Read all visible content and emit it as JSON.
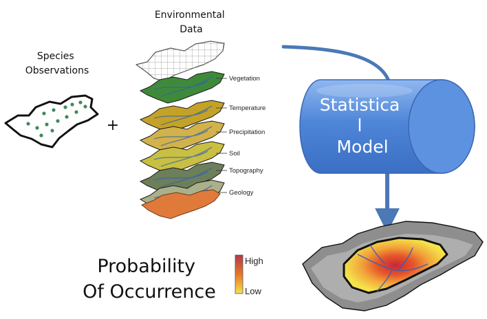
{
  "species_observations_label": [
    "Species",
    "Observations"
  ],
  "plus_sign": "+",
  "environmental_data_label": [
    "Environmental",
    "Data"
  ],
  "layers": [
    {
      "name": "Vegetation",
      "color": "#3f8a3a"
    },
    {
      "name": "Temperature",
      "color": "#c4a227"
    },
    {
      "name": "Precipitation",
      "color": "#d2b24a"
    },
    {
      "name": "Soil",
      "color": "#c9c043"
    },
    {
      "name": "Topography",
      "color": "#6d7f5a"
    },
    {
      "name": "Geology",
      "color": "#aab08a"
    }
  ],
  "statistical_model_label": [
    "Statistica",
    "l",
    "Model"
  ],
  "probability_label": [
    "Probability",
    "Of Occurrence"
  ],
  "legend": {
    "high_label": "High",
    "low_label": "Low",
    "high_color": "#b23a4a",
    "mid_color": "#e8762a",
    "low_color": "#f3e34a"
  },
  "colors": {
    "cylinder_fill": "#4f86d8",
    "arrow": "#4a79b5",
    "observation_dot": "#3f8a5c",
    "geology_bottom": "#e07a3a"
  }
}
